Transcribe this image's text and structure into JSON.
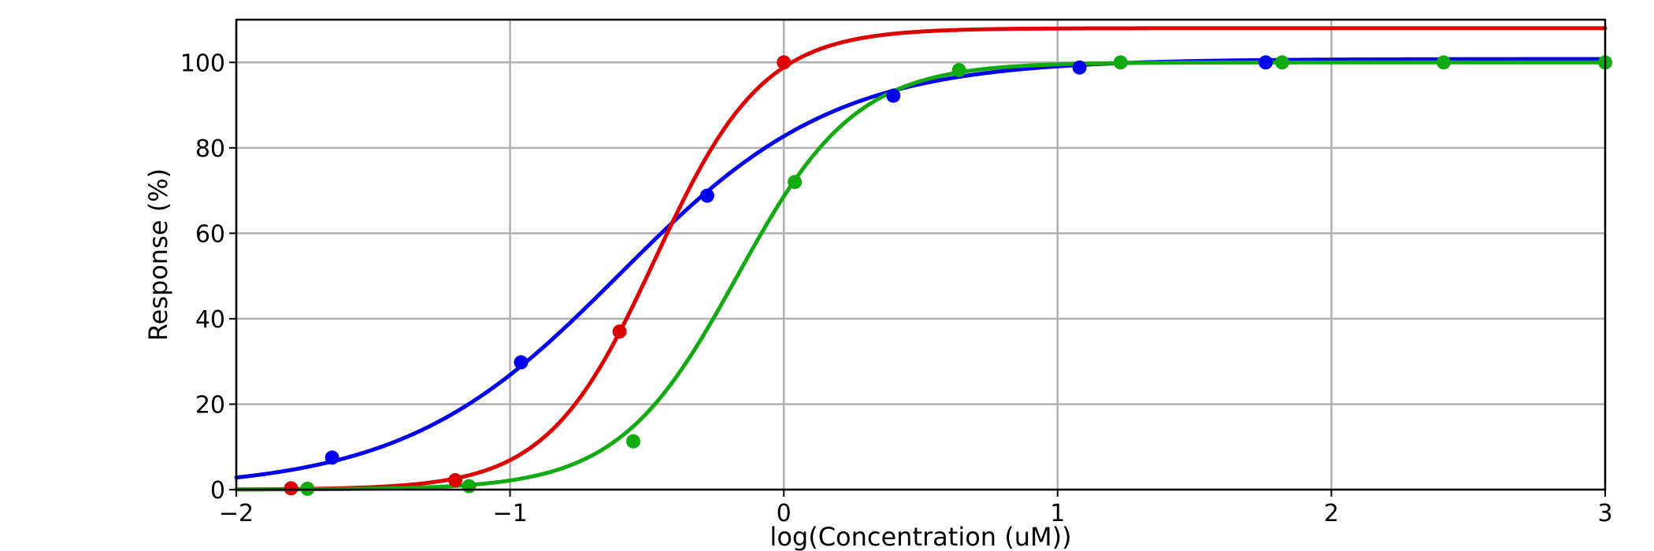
{
  "chart_data": {
    "type": "line",
    "title": "",
    "xlabel": "log(Concentration (uM))",
    "ylabel": "Response (%)",
    "xlim": [
      -2,
      3
    ],
    "ylim": [
      0,
      110
    ],
    "x_ticks": [
      -2,
      -1,
      0,
      1,
      2,
      3
    ],
    "x_tick_labels": [
      "−2",
      "−1",
      "0",
      "1",
      "2",
      "3"
    ],
    "y_ticks": [
      0,
      20,
      40,
      60,
      80,
      100
    ],
    "y_tick_labels": [
      "0",
      "20",
      "40",
      "60",
      "80",
      "100"
    ],
    "grid": true,
    "legend": "none",
    "series": [
      {
        "color": "#0000ee",
        "fit": {
          "bottom": 0,
          "top": 100.8,
          "log_ec50": -0.6,
          "hill": 1.1
        },
        "points": [
          {
            "x": -1.65,
            "y": 7.5
          },
          {
            "x": -0.96,
            "y": 29.8
          },
          {
            "x": -0.28,
            "y": 68.8
          },
          {
            "x": 0.4,
            "y": 92.2
          },
          {
            "x": 1.08,
            "y": 98.8
          },
          {
            "x": 1.76,
            "y": 100.0
          }
        ]
      },
      {
        "color": "#dd0000",
        "fit": {
          "bottom": 0,
          "top": 108,
          "log_ec50": -0.47,
          "hill": 2.2
        },
        "points": [
          {
            "x": -1.8,
            "y": 0.3
          },
          {
            "x": -1.2,
            "y": 2.2
          },
          {
            "x": -0.6,
            "y": 37.0
          },
          {
            "x": 0.0,
            "y": 100.0
          }
        ]
      },
      {
        "color": "#11aa11",
        "fit": {
          "bottom": 0,
          "top": 100,
          "log_ec50": -0.17,
          "hill": 2.0
        },
        "points": [
          {
            "x": -1.74,
            "y": 0.2
          },
          {
            "x": -1.15,
            "y": 0.8
          },
          {
            "x": -0.55,
            "y": 11.3
          },
          {
            "x": 0.04,
            "y": 72.0
          },
          {
            "x": 0.64,
            "y": 98.2
          },
          {
            "x": 1.23,
            "y": 100.0
          },
          {
            "x": 1.82,
            "y": 100.0
          },
          {
            "x": 2.41,
            "y": 100.0
          },
          {
            "x": 3.0,
            "y": 100.0
          }
        ]
      }
    ]
  }
}
